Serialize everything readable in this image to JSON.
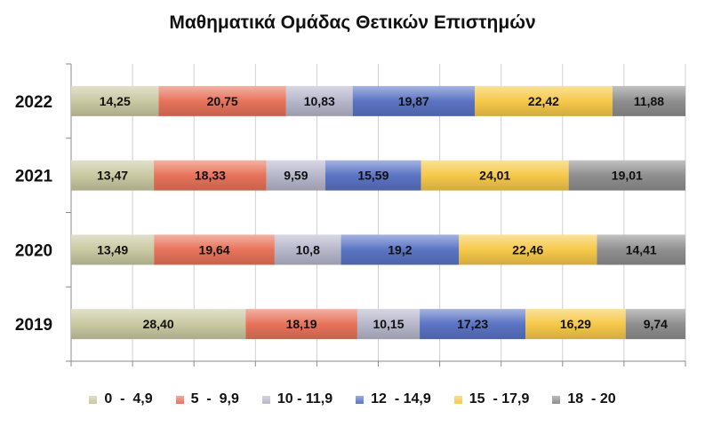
{
  "chart_data": {
    "type": "bar",
    "orientation": "horizontal",
    "stacked": true,
    "title": "Μαθηματικά Ομάδας Θετικών Επιστημών",
    "categories": [
      "2022",
      "2021",
      "2020",
      "2019"
    ],
    "series": [
      {
        "name": "0  -  4,9",
        "color": "#c9c9a2",
        "values": [
          14.25,
          13.47,
          13.49,
          28.4
        ],
        "labels": [
          "14,25",
          "13,47",
          "13,49",
          "28,40"
        ]
      },
      {
        "name": "5  -  9,9",
        "color": "#e8735a",
        "values": [
          20.75,
          18.33,
          19.64,
          18.19
        ],
        "labels": [
          "20,75",
          "18,33",
          "19,64",
          "18,19"
        ]
      },
      {
        "name": "10 - 11,9",
        "color": "#b7b7cc",
        "values": [
          10.83,
          9.59,
          10.8,
          10.15
        ],
        "labels": [
          "10,83",
          "9,59",
          "10,8",
          "10,15"
        ]
      },
      {
        "name": "12  - 14,9",
        "color": "#5b74c4",
        "values": [
          19.87,
          15.59,
          19.2,
          17.23
        ],
        "labels": [
          "19,87",
          "15,59",
          "19,2",
          "17,23"
        ]
      },
      {
        "name": "15  - 17,9",
        "color": "#f6c94a",
        "values": [
          22.42,
          24.01,
          22.46,
          16.29
        ],
        "labels": [
          "22,42",
          "24,01",
          "22,46",
          "16,29"
        ]
      },
      {
        "name": "18  - 20",
        "color": "#8f8f8f",
        "values": [
          11.88,
          19.01,
          14.41,
          9.74
        ],
        "labels": [
          "11,88",
          "19,01",
          "14,41",
          "9,74"
        ]
      }
    ],
    "xlim": [
      0,
      100
    ],
    "grid": true,
    "legend_position": "bottom"
  }
}
